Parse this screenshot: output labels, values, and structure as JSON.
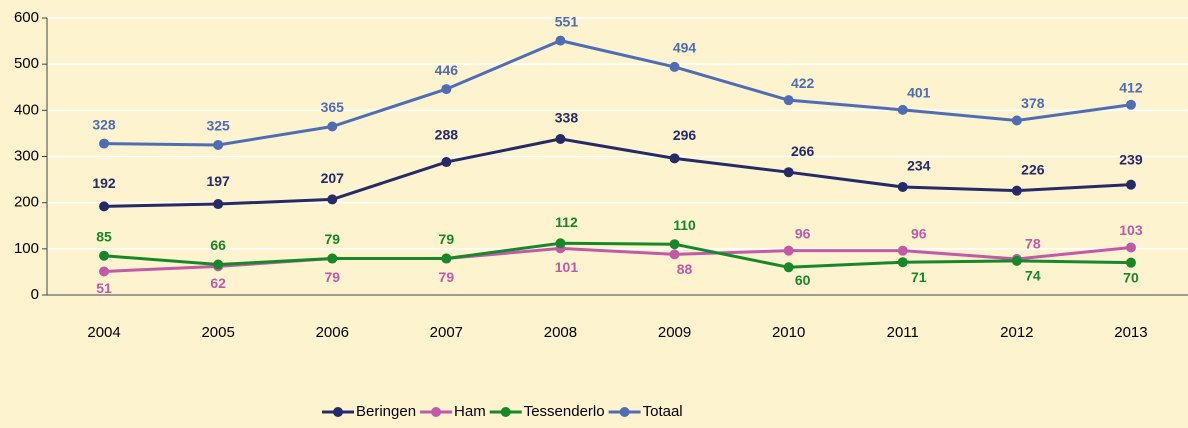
{
  "chart_data": {
    "type": "line",
    "categories": [
      "2004",
      "2005",
      "2006",
      "2007",
      "2008",
      "2009",
      "2010",
      "2011",
      "2012",
      "2013"
    ],
    "series": [
      {
        "name": "Beringen",
        "color": "#262a66",
        "values": [
          192,
          197,
          207,
          288,
          338,
          296,
          266,
          234,
          226,
          239
        ]
      },
      {
        "name": "Ham",
        "color": "#c15aa8",
        "values": [
          51,
          62,
          79,
          79,
          101,
          88,
          96,
          96,
          78,
          103
        ]
      },
      {
        "name": "Tessenderlo",
        "color": "#17882a",
        "values": [
          85,
          66,
          79,
          79,
          112,
          110,
          60,
          71,
          74,
          70
        ]
      },
      {
        "name": "Totaal",
        "color": "#4f6db4",
        "values": [
          328,
          325,
          365,
          446,
          551,
          494,
          422,
          401,
          378,
          412
        ]
      }
    ],
    "ylim": [
      0,
      600
    ],
    "yticks": [
      0,
      100,
      200,
      300,
      400,
      500,
      600
    ],
    "grid": true,
    "legend": "bottom"
  }
}
